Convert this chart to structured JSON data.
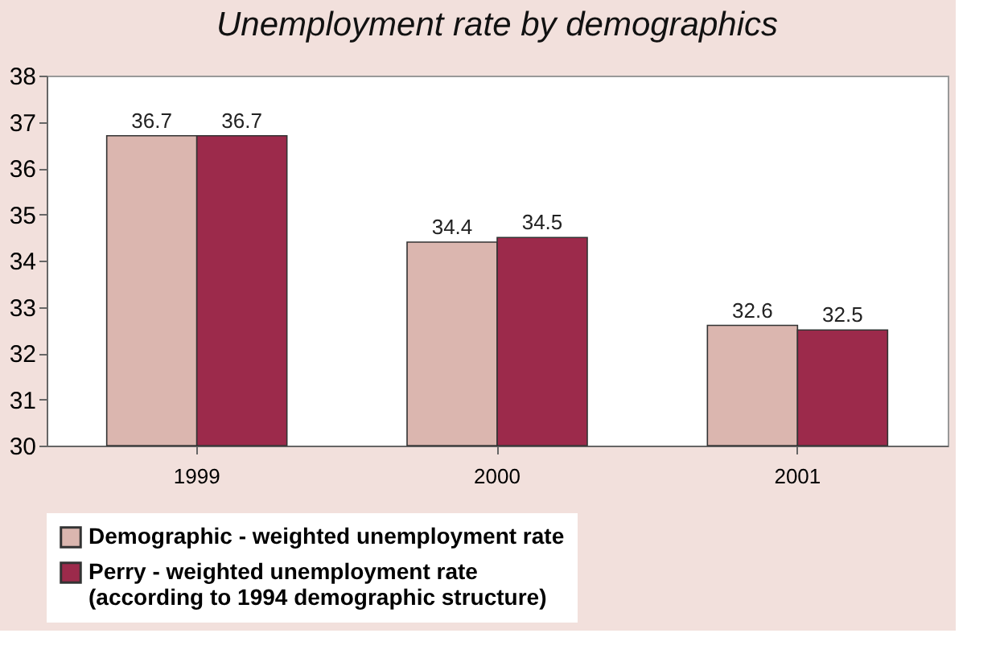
{
  "chart_data": {
    "type": "bar",
    "title": "Unemployment rate by demographics",
    "categories": [
      "1999",
      "2000",
      "2001"
    ],
    "series": [
      {
        "name": "Demographic - weighted unemployment rate",
        "color": "#dbb6af",
        "values": [
          36.7,
          34.4,
          32.6
        ]
      },
      {
        "name": "Perry - weighted unemployment rate (according to 1994 demographic structure)",
        "color": "#9c2a4b",
        "values": [
          36.7,
          34.5,
          32.5
        ]
      }
    ],
    "ylim": [
      30,
      38
    ],
    "yticks": [
      30,
      31,
      32,
      33,
      34,
      35,
      36,
      37,
      38
    ],
    "grid": false,
    "legend": "bottom",
    "data_labels": true
  }
}
